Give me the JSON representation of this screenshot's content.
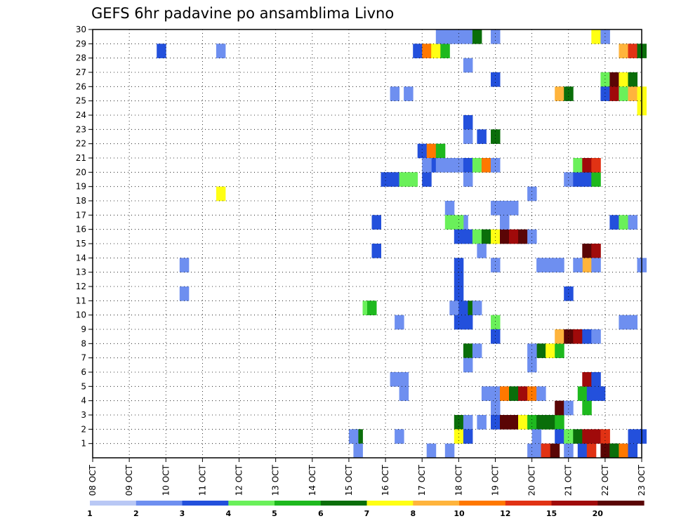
{
  "chart_data": {
    "type": "heatmap",
    "title": "GEFS 6hr padavine po ansamblima Livno",
    "x_tick_labels": [
      "08 OCT",
      "09 OCT",
      "10 OCT",
      "11 OCT",
      "12 OCT",
      "13 OCT",
      "14 OCT",
      "15 OCT",
      "16 OCT",
      "17 OCT",
      "18 OCT",
      "19 OCT",
      "20 OCT",
      "21 OCT",
      "22 OCT",
      "23 OCT"
    ],
    "y_tick_labels": [
      "1",
      "2",
      "3",
      "4",
      "5",
      "6",
      "7",
      "8",
      "9",
      "10",
      "11",
      "12",
      "13",
      "14",
      "15",
      "16",
      "17",
      "18",
      "19",
      "20",
      "21",
      "22",
      "23",
      "24",
      "25",
      "26",
      "27",
      "28",
      "29",
      "30"
    ],
    "xlim_steps": [
      0,
      60
    ],
    "ylim": [
      0,
      30
    ],
    "grid": true,
    "legend": {
      "placement": "bottom",
      "colors": [
        "#b9c8f5",
        "#6e8ff0",
        "#2350dc",
        "#6af05a",
        "#1eb91e",
        "#0a6e0a",
        "#ffff14",
        "#ffb43c",
        "#ff7800",
        "#e13214",
        "#a00a0a",
        "#5a0505"
      ],
      "labels": [
        "1",
        "2",
        "3",
        "4",
        "5",
        "6",
        "7",
        "8",
        "10",
        "12",
        "15",
        "20"
      ]
    },
    "cells": [
      [
        7,
        28,
        2
      ],
      [
        9.5,
        13,
        1
      ],
      [
        9.5,
        11,
        1
      ],
      [
        13.5,
        28,
        1
      ],
      [
        13.5,
        18,
        6
      ],
      [
        28.5,
        1,
        5
      ],
      [
        28.5,
        0,
        1
      ],
      [
        29.5,
        10,
        3
      ],
      [
        30,
        10,
        4
      ],
      [
        30.5,
        16,
        2
      ],
      [
        30.5,
        14,
        2
      ],
      [
        28,
        1,
        1
      ],
      [
        31.5,
        19,
        2
      ],
      [
        32.5,
        25,
        1
      ],
      [
        32.5,
        19,
        2
      ],
      [
        33.5,
        19,
        3
      ],
      [
        34.5,
        19,
        3
      ],
      [
        32.5,
        5,
        1
      ],
      [
        33.5,
        5,
        1
      ],
      [
        33.5,
        4,
        1
      ],
      [
        33,
        1,
        1
      ],
      [
        33,
        9,
        1
      ],
      [
        34,
        25,
        1
      ],
      [
        35,
        28,
        2
      ],
      [
        36,
        28,
        8
      ],
      [
        37,
        28,
        6
      ],
      [
        38,
        28,
        4
      ],
      [
        35.5,
        21,
        2
      ],
      [
        36.5,
        21,
        8
      ],
      [
        37.5,
        21,
        4
      ],
      [
        36.5,
        20,
        2
      ],
      [
        37.5,
        20,
        1
      ],
      [
        38.5,
        20,
        1
      ],
      [
        37.5,
        29,
        1
      ],
      [
        38.5,
        29,
        1
      ],
      [
        36,
        19,
        2
      ],
      [
        36,
        20,
        1
      ],
      [
        38.5,
        17,
        1
      ],
      [
        38.5,
        16,
        3
      ],
      [
        38.5,
        0,
        1
      ],
      [
        36.5,
        0,
        1
      ],
      [
        39.5,
        29,
        1
      ],
      [
        40.5,
        29,
        1
      ],
      [
        41.5,
        29,
        5
      ],
      [
        39.5,
        20,
        1
      ],
      [
        40.5,
        20,
        2
      ],
      [
        41.5,
        20,
        3
      ],
      [
        42.5,
        20,
        8
      ],
      [
        40.5,
        19,
        1
      ],
      [
        40.5,
        27,
        1
      ],
      [
        40.5,
        23,
        2
      ],
      [
        40.5,
        22,
        1
      ],
      [
        40,
        16,
        1
      ],
      [
        39.5,
        16,
        3
      ],
      [
        39.5,
        15,
        2
      ],
      [
        40.5,
        15,
        2
      ],
      [
        41.5,
        15,
        3
      ],
      [
        42.5,
        15,
        5
      ],
      [
        43.5,
        15,
        6
      ],
      [
        44.5,
        15,
        11
      ],
      [
        45.5,
        15,
        10
      ],
      [
        46.5,
        15,
        11
      ],
      [
        47.5,
        15,
        1
      ],
      [
        44.5,
        16,
        1
      ],
      [
        39.5,
        13,
        2
      ],
      [
        39.5,
        12,
        2
      ],
      [
        39.5,
        11,
        2
      ],
      [
        39,
        10,
        1
      ],
      [
        40,
        10,
        2
      ],
      [
        41,
        10,
        5
      ],
      [
        41.5,
        10,
        1
      ],
      [
        39.5,
        9,
        2
      ],
      [
        40.5,
        9,
        2
      ],
      [
        40.5,
        7,
        5
      ],
      [
        41.5,
        7,
        1
      ],
      [
        40.5,
        6,
        1
      ],
      [
        42,
        22,
        2
      ],
      [
        42,
        14,
        1
      ],
      [
        39.5,
        2,
        5
      ],
      [
        40.5,
        2,
        1
      ],
      [
        42,
        2,
        1
      ],
      [
        39.5,
        1,
        6
      ],
      [
        40.5,
        1,
        2
      ],
      [
        43.5,
        29,
        1
      ],
      [
        43.5,
        26,
        2
      ],
      [
        43.5,
        22,
        5
      ],
      [
        43.5,
        20,
        1
      ],
      [
        43.5,
        17,
        1
      ],
      [
        44.5,
        17,
        1
      ],
      [
        45.5,
        17,
        1
      ],
      [
        43.5,
        13,
        1
      ],
      [
        43.5,
        9,
        3
      ],
      [
        43.5,
        8,
        2
      ],
      [
        43.5,
        4,
        1
      ],
      [
        43.5,
        3,
        1
      ],
      [
        43.5,
        2,
        2
      ],
      [
        42.5,
        4,
        1
      ],
      [
        44.5,
        4,
        8
      ],
      [
        45.5,
        4,
        5
      ],
      [
        46.5,
        4,
        10
      ],
      [
        47.5,
        4,
        8
      ],
      [
        48.5,
        4,
        1
      ],
      [
        44.5,
        2,
        11
      ],
      [
        45.5,
        2,
        11
      ],
      [
        46.5,
        2,
        6
      ],
      [
        47.5,
        2,
        4
      ],
      [
        48.5,
        2,
        5
      ],
      [
        49.5,
        2,
        5
      ],
      [
        50.5,
        2,
        4
      ],
      [
        48.5,
        7,
        5
      ],
      [
        49.5,
        7,
        6
      ],
      [
        50.5,
        7,
        4
      ],
      [
        47.5,
        7,
        1
      ],
      [
        47.5,
        6,
        1
      ],
      [
        47.5,
        0,
        1
      ],
      [
        48,
        1,
        1
      ],
      [
        48.5,
        13,
        1
      ],
      [
        49.5,
        13,
        1
      ],
      [
        50.5,
        13,
        1
      ],
      [
        47.5,
        18,
        1
      ],
      [
        48.5,
        0,
        1
      ],
      [
        49,
        0,
        9
      ],
      [
        50,
        0,
        11
      ],
      [
        50.5,
        25,
        7
      ],
      [
        51.5,
        25,
        5
      ],
      [
        50.5,
        8,
        7
      ],
      [
        51.5,
        8,
        11
      ],
      [
        52.5,
        8,
        10
      ],
      [
        53.5,
        8,
        2
      ],
      [
        54.5,
        8,
        1
      ],
      [
        50.5,
        3,
        11
      ],
      [
        51.5,
        3,
        1
      ],
      [
        50.5,
        1,
        2
      ],
      [
        51.5,
        1,
        3
      ],
      [
        52.5,
        1,
        5
      ],
      [
        53,
        4,
        4
      ],
      [
        54,
        4,
        2
      ],
      [
        55,
        4,
        2
      ],
      [
        53.5,
        3,
        4
      ],
      [
        51.5,
        0,
        1
      ],
      [
        53,
        0,
        2
      ],
      [
        54,
        0,
        9
      ],
      [
        51.5,
        19,
        1
      ],
      [
        52.5,
        19,
        2
      ],
      [
        53.5,
        19,
        2
      ],
      [
        54.5,
        19,
        4
      ],
      [
        52.5,
        20,
        3
      ],
      [
        53.5,
        20,
        10
      ],
      [
        54.5,
        20,
        9
      ],
      [
        51.5,
        11,
        2
      ],
      [
        53.5,
        14,
        11
      ],
      [
        54.5,
        14,
        10
      ],
      [
        53.5,
        13,
        7
      ],
      [
        54.5,
        13,
        1
      ],
      [
        52.5,
        13,
        1
      ],
      [
        53.5,
        5,
        10
      ],
      [
        54.5,
        5,
        2
      ],
      [
        53.5,
        1,
        10
      ],
      [
        54.5,
        1,
        10
      ],
      [
        55.5,
        1,
        9
      ],
      [
        55.5,
        0,
        11
      ],
      [
        56.5,
        0,
        5
      ],
      [
        56.5,
        0,
        5
      ],
      [
        57.5,
        0,
        8
      ],
      [
        58.5,
        0,
        2
      ],
      [
        54.5,
        29,
        6
      ],
      [
        55.5,
        29,
        1
      ],
      [
        55.5,
        26,
        3
      ],
      [
        55.5,
        25,
        2
      ],
      [
        56.5,
        26,
        11
      ],
      [
        57.5,
        26,
        6
      ],
      [
        58.5,
        26,
        5
      ],
      [
        56.5,
        25,
        10
      ],
      [
        57.5,
        25,
        3
      ],
      [
        58.5,
        25,
        7
      ],
      [
        59.5,
        25,
        6
      ],
      [
        59.5,
        24,
        6
      ],
      [
        57.5,
        28,
        7
      ],
      [
        58.5,
        28,
        9
      ],
      [
        59.5,
        28,
        5
      ],
      [
        56.5,
        16,
        2
      ],
      [
        57.5,
        16,
        3
      ],
      [
        58.5,
        16,
        1
      ],
      [
        58.5,
        9,
        1
      ],
      [
        57.5,
        9,
        1
      ],
      [
        59.5,
        13,
        1
      ],
      [
        58.5,
        1,
        2
      ],
      [
        59.5,
        1,
        2
      ]
    ]
  }
}
